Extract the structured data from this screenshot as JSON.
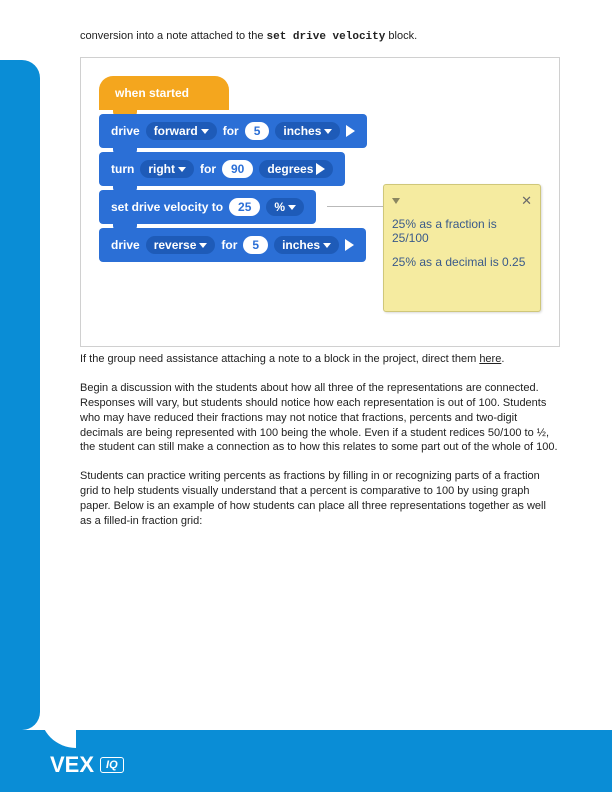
{
  "intro": {
    "prefix": "conversion into a note attached to the ",
    "code": "set drive velocity",
    "suffix": " block."
  },
  "blocks": {
    "hat": "when started",
    "b1": {
      "cmd": "drive",
      "dir": "forward",
      "for": "for",
      "val": "5",
      "unit": "inches"
    },
    "b2": {
      "cmd": "turn",
      "dir": "right",
      "for": "for",
      "val": "90",
      "unit": "degrees"
    },
    "b3": {
      "cmd": "set drive velocity to",
      "val": "25",
      "unit": "%"
    },
    "b4": {
      "cmd": "drive",
      "dir": "reverse",
      "for": "for",
      "val": "5",
      "unit": "inches"
    }
  },
  "note": {
    "line1": "25% as a fraction is 25/100",
    "line2": "25% as a decimal is 0.25",
    "close": "✕"
  },
  "caption": {
    "text": "If the group need assistance attaching a note to a block in the project, direct them ",
    "link": "here"
  },
  "p1": "Begin a discussion with the students about how all three of the representations are connected. Responses will vary, but students should notice how each representation is out of 100. Students who may have reduced their fractions may not notice that fractions, percents and two-digit decimals are being represented with 100 being the whole. Even if a student redices 50/100 to ½, the student can still make a connection as to how this relates to some part out of the whole of 100.",
  "p2": "Students can practice writing percents as fractions by filling in or recognizing parts of a fraction grid to help students visually understand that a percent is comparative to 100 by using graph paper. Below is an example of how students can place all three representations together as well as a filled-in fraction grid:",
  "logo": {
    "brand": "VEX",
    "sub": "IQ"
  }
}
